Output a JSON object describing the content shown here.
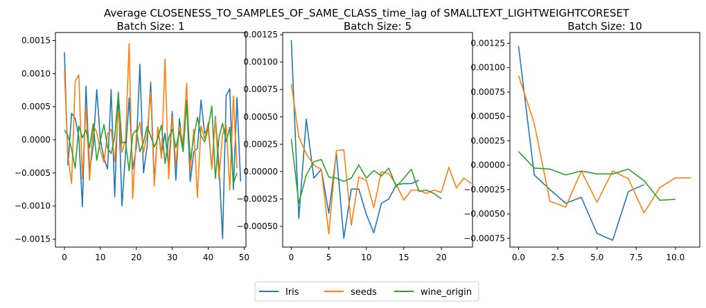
{
  "suptitle": "Average CLOSENESS_TO_SAMPLES_OF_SAME_CLASS_time_lag of SMALLTEXT_LIGHTWEIGHTCORESET",
  "legend": {
    "placement": "bottom-center",
    "entries": [
      "Iris",
      "seeds",
      "wine_origin"
    ]
  },
  "colors": {
    "Iris": "#1f77b4",
    "seeds": "#ff7f0e",
    "wine_origin": "#2ca02c"
  },
  "chart_data": [
    {
      "type": "line",
      "title": "Batch Size: 1",
      "xlim": [
        -2.5,
        50.5
      ],
      "ylim": [
        -0.00162,
        0.00162
      ],
      "xticks": [
        0,
        10,
        20,
        30,
        40,
        50
      ],
      "xtick_labels": [
        "0",
        "10",
        "20",
        "30",
        "40",
        "50"
      ],
      "yticks": [
        0.0015,
        0.001,
        0.0005,
        0.0,
        -0.0005,
        -0.001,
        -0.0015
      ],
      "ytick_labels": [
        "0.0015",
        "0.0010",
        "0.0005",
        "0.0000",
        "−0.0005",
        "−0.0010",
        "−0.0015"
      ],
      "grid": false,
      "series": [
        {
          "name": "Iris",
          "x_start": 0,
          "values": [
            0.00132,
            -0.00038,
            0.0004,
            0.00032,
            5e-05,
            -0.00101,
            0.00081,
            -0.00047,
            -0.0001,
            0.00076,
            0.0,
            -0.00028,
            -0.00044,
            0.00076,
            -0.00086,
            0.00072,
            -0.001,
            -0.0002,
            0.00063,
            -0.00044,
            -0.00012,
            0.00114,
            -0.0005,
            -0.0001,
            0.00087,
            -0.00063,
            0.00018,
            -0.00022,
            0.0001,
            -0.00042,
            0.00043,
            -0.00061,
            0.00032,
            -0.00018,
            0.0006,
            -0.00063,
            -0.00018,
            -0.00013,
            0.0006,
            0.0001,
            0.00018,
            -0.00042,
            0.00035,
            -0.00039,
            -0.00149,
            0.00067,
            0.00077,
            -0.00075,
            0.00064,
            -0.00063
          ]
        },
        {
          "name": "seeds",
          "x_start": 0,
          "values": [
            0.00105,
            -0.00026,
            -0.00066,
            0.00089,
            0.00098,
            -0.00059,
            0.00051,
            -0.00061,
            0.00023,
            0.00011,
            -0.00016,
            -0.00034,
            9e-05,
            0.00016,
            -0.00033,
            0.00046,
            -0.00019,
            0.0,
            0.00145,
            -0.00089,
            6e-05,
            0.00027,
            -0.00019,
            9e-05,
            0.00072,
            -0.0007,
            0.00019,
            -0.00028,
            0.00122,
            -0.00059,
            0.00035,
            -0.00038,
            0.00021,
            -5e-05,
            0.00085,
            -0.00047,
            0.00016,
            -0.00087,
            0.00021,
            2e-05,
            0.00026,
            -0.00044,
            0.00032,
            -0.00059,
            9e-05,
            0.00022,
            -0.00076,
            0.00066,
            -0.00043
          ]
        },
        {
          "name": "wine_origin",
          "x_start": 0,
          "values": [
            0.00015,
            6e-05,
            -0.00014,
            -0.00043,
            0.00021,
            3e-05,
            0.00015,
            -0.00012,
            0.00024,
            -0.00031,
            -1e-05,
            0.00023,
            -0.00012,
            -0.00021,
            5e-05,
            0.0007,
            -5e-05,
            -3e-05,
            -0.00047,
            8e-05,
            0.00015,
            -0.00018,
            -4e-05,
            0.0002,
            6e-05,
            -0.00011,
            3e-05,
            0.00022,
            -0.00036,
            3e-05,
            0.00016,
            -0.00012,
            0.00013,
            -0.00017,
            0.00056,
            -0.00031,
            4e-05,
            0.00034,
            6e-05,
            -3e-05,
            0.00018,
            0.00051,
            -0.00058,
            3e-05,
            0.00025,
            -3e-05,
            0.00019,
            -0.00066,
            -0.0005
          ]
        }
      ]
    },
    {
      "type": "line",
      "title": "Batch Size: 5",
      "xlim": [
        -1.15,
        24.15
      ],
      "ylim": [
        -0.00069,
        0.00127
      ],
      "xticks": [
        0,
        5,
        10,
        15,
        20
      ],
      "xtick_labels": [
        "0",
        "5",
        "10",
        "15",
        "20"
      ],
      "yticks": [
        0.00125,
        0.001,
        0.00075,
        0.0005,
        0.00025,
        0.0,
        -0.00025,
        -0.0005
      ],
      "ytick_labels": [
        "0.00125",
        "0.00100",
        "0.00075",
        "0.00050",
        "0.00025",
        "0.00000",
        "−0.00025",
        "−0.00050"
      ],
      "grid": false,
      "series": [
        {
          "name": "Iris",
          "x_start": 0,
          "values": [
            0.0012,
            -0.00043,
            0.00048,
            -6e-05,
            2e-05,
            -0.00038,
            0.00017,
            -0.00061,
            -0.00016,
            -0.00016,
            -0.00039,
            -0.00056,
            -0.00029,
            -0.00025,
            -0.00012,
            -0.00011,
            -0.00011,
            -8e-05
          ]
        },
        {
          "name": "seeds",
          "x_start": 0,
          "values": [
            0.0008,
            0.00032,
            0.00016,
            6e-05,
            2e-05,
            -0.00057,
            0.00019,
            0.0002,
            -0.00049,
            -5e-05,
            -8e-05,
            -0.00033,
            0.0,
            -2e-05,
            -0.00012,
            -0.00026,
            -0.00017,
            -0.00017,
            -0.0002,
            -0.00017,
            -0.00019,
            4e-05,
            -0.00015,
            -6e-05,
            -0.00011
          ]
        },
        {
          "name": "wine_origin",
          "x_start": 0,
          "values": [
            0.0003,
            -0.00029,
            -3e-05,
            9e-05,
            0.00011,
            -5e-05,
            -6e-05,
            -9e-05,
            -6e-05,
            6e-05,
            -6e-05,
            1e-05,
            -4e-05,
            3e-05,
            -0.00014,
            -6e-05,
            2e-05,
            -0.00018,
            -0.00017,
            -0.0002,
            -0.00025
          ]
        }
      ]
    },
    {
      "type": "line",
      "title": "Batch Size: 10",
      "xlim": [
        -0.55,
        11.55
      ],
      "ylim": [
        -0.00084,
        0.00136
      ],
      "xticks": [
        0,
        2.5,
        5,
        7.5,
        10
      ],
      "xtick_labels": [
        "0.0",
        "2.5",
        "5.0",
        "7.5",
        "10.0"
      ],
      "yticks": [
        0.00125,
        0.001,
        0.00075,
        0.0005,
        0.00025,
        0.0,
        -0.00025,
        -0.0005,
        -0.00075
      ],
      "ytick_labels": [
        "0.00125",
        "0.00100",
        "0.00075",
        "0.00050",
        "0.00025",
        "0.00000",
        "−0.00025",
        "−0.00050",
        "−0.00075"
      ],
      "grid": false,
      "series": [
        {
          "name": "Iris",
          "x_start": 0,
          "values": [
            0.00122,
            -0.0001,
            -0.00025,
            -0.00039,
            -0.00033,
            -0.0007,
            -0.00077,
            -0.00027,
            -0.0002
          ]
        },
        {
          "name": "seeds",
          "x_start": 0,
          "values": [
            0.00092,
            0.00043,
            -0.00037,
            -0.00043,
            -6e-05,
            -0.00038,
            -6e-05,
            -0.00014,
            -0.00049,
            -0.00023,
            -0.00013,
            -0.00013
          ]
        },
        {
          "name": "wine_origin",
          "x_start": 0,
          "values": [
            0.00014,
            -3e-05,
            -4e-05,
            -0.0001,
            -6e-05,
            -9e-05,
            -9e-05,
            -4e-05,
            -0.00016,
            -0.00036,
            -0.00035
          ]
        }
      ]
    }
  ]
}
